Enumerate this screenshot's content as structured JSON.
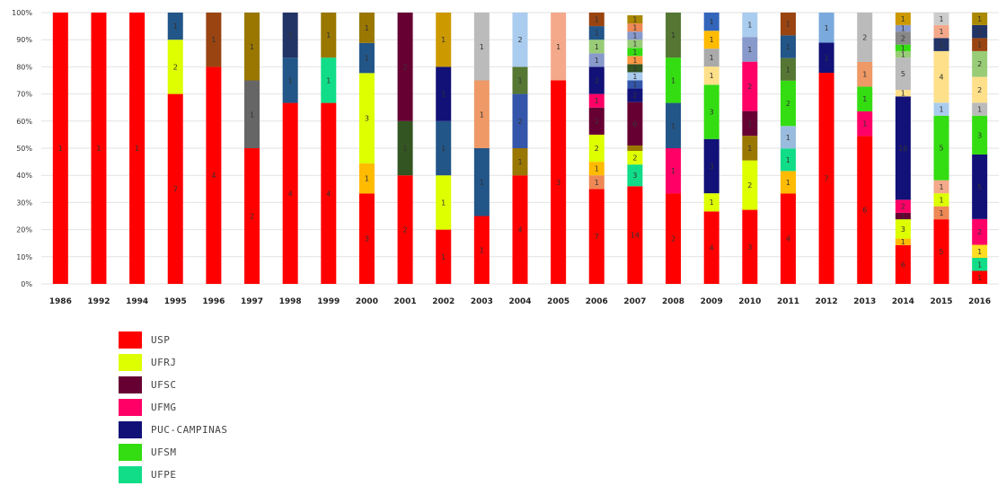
{
  "chart_data": {
    "type": "bar",
    "stacked": true,
    "normalized": true,
    "y_axis": {
      "min": 0,
      "max": 100,
      "unit": "%",
      "ticks": [
        "0%",
        "10%",
        "20%",
        "30%",
        "40%",
        "50%",
        "60%",
        "70%",
        "80%",
        "90%",
        "100%"
      ]
    },
    "grid": true,
    "legend_position": "bottom-left",
    "categories": [
      "1986",
      "1992",
      "1994",
      "1995",
      "1996",
      "1997",
      "1998",
      "1999",
      "2000",
      "2001",
      "2002",
      "2003",
      "2004",
      "2005",
      "2006",
      "2007",
      "2008",
      "2009",
      "2010",
      "2011",
      "2012",
      "2013",
      "2014",
      "2015",
      "2016"
    ],
    "legend": [
      {
        "name": "USP",
        "color": "#ff0000"
      },
      {
        "name": "UFRJ",
        "color": "#ddff00"
      },
      {
        "name": "UFSC",
        "color": "#660033"
      },
      {
        "name": "UFMG",
        "color": "#ff0066"
      },
      {
        "name": "PUC-CAMPINAS",
        "color": "#111177"
      },
      {
        "name": "UFSM",
        "color": "#33dd11"
      },
      {
        "name": "UFPE",
        "color": "#11dd88"
      }
    ],
    "bars": [
      {
        "segments": [
          {
            "value": 100,
            "color": "#ff0000",
            "label": "1"
          }
        ]
      },
      {
        "segments": [
          {
            "value": 100,
            "color": "#ff0000",
            "label": "1"
          }
        ]
      },
      {
        "segments": [
          {
            "value": 100,
            "color": "#ff0000",
            "label": "1"
          }
        ]
      },
      {
        "segments": [
          {
            "value": 70,
            "color": "#ff0000",
            "label": "7"
          },
          {
            "value": 20,
            "color": "#ddff00",
            "label": "2"
          },
          {
            "value": 10,
            "color": "#225588",
            "label": "1"
          }
        ]
      },
      {
        "segments": [
          {
            "value": 80,
            "color": "#ff0000",
            "label": "4"
          },
          {
            "value": 20,
            "color": "#994411",
            "label": "1"
          }
        ]
      },
      {
        "segments": [
          {
            "value": 50,
            "color": "#ff0000",
            "label": "2"
          },
          {
            "value": 25,
            "color": "#666666",
            "label": "1"
          },
          {
            "value": 25,
            "color": "#997700",
            "label": "1"
          }
        ]
      },
      {
        "segments": [
          {
            "value": 66.7,
            "color": "#ff0000",
            "label": "4"
          },
          {
            "value": 16.7,
            "color": "#225588",
            "label": "1"
          },
          {
            "value": 16.6,
            "color": "#223366",
            "label": "1"
          }
        ]
      },
      {
        "segments": [
          {
            "value": 66.7,
            "color": "#ff0000",
            "label": "4"
          },
          {
            "value": 16.7,
            "color": "#11dd88",
            "label": "1"
          },
          {
            "value": 16.6,
            "color": "#997700",
            "label": "1"
          }
        ]
      },
      {
        "segments": [
          {
            "value": 33.3,
            "color": "#ff0000",
            "label": "3"
          },
          {
            "value": 11.1,
            "color": "#ffbb00",
            "label": "1"
          },
          {
            "value": 33.3,
            "color": "#ddff00",
            "label": "3"
          },
          {
            "value": 11.1,
            "color": "#225588",
            "label": "1"
          },
          {
            "value": 11.2,
            "color": "#997700",
            "label": "1"
          }
        ]
      },
      {
        "segments": [
          {
            "value": 40,
            "color": "#ff0000",
            "label": "2"
          },
          {
            "value": 20,
            "color": "#335522",
            "label": "1"
          },
          {
            "value": 40,
            "color": "#660033",
            "label": "2"
          }
        ]
      },
      {
        "segments": [
          {
            "value": 20,
            "color": "#ff0000",
            "label": "1"
          },
          {
            "value": 20,
            "color": "#ddff00",
            "label": "1"
          },
          {
            "value": 20,
            "color": "#225588",
            "label": "1"
          },
          {
            "value": 20,
            "color": "#111177",
            "label": "1"
          },
          {
            "value": 20,
            "color": "#cc9900",
            "label": "1"
          }
        ]
      },
      {
        "segments": [
          {
            "value": 25,
            "color": "#ff0000",
            "label": "1"
          },
          {
            "value": 25,
            "color": "#225588",
            "label": "1"
          },
          {
            "value": 25,
            "color": "#ee9966",
            "label": "1"
          },
          {
            "value": 25,
            "color": "#bbbbbb",
            "label": "1"
          }
        ]
      },
      {
        "segments": [
          {
            "value": 40,
            "color": "#ff0000",
            "label": "4"
          },
          {
            "value": 10,
            "color": "#997700",
            "label": "1"
          },
          {
            "value": 20,
            "color": "#3355aa",
            "label": "2"
          },
          {
            "value": 10,
            "color": "#557733",
            "label": "1"
          },
          {
            "value": 20,
            "color": "#aaccee",
            "label": "2"
          }
        ]
      },
      {
        "segments": [
          {
            "value": 75,
            "color": "#ff0000",
            "label": "3"
          },
          {
            "value": 25,
            "color": "#f4a98a",
            "label": "1"
          }
        ]
      },
      {
        "segments": [
          {
            "value": 35,
            "color": "#ff0000",
            "label": "7"
          },
          {
            "value": 5,
            "color": "#ee8855",
            "label": "1"
          },
          {
            "value": 5,
            "color": "#ffbb00",
            "label": "1"
          },
          {
            "value": 10,
            "color": "#ddff00",
            "label": "2"
          },
          {
            "value": 10,
            "color": "#660033",
            "label": "2"
          },
          {
            "value": 5,
            "color": "#ff0066",
            "label": "1"
          },
          {
            "value": 10,
            "color": "#111177",
            "label": "2"
          },
          {
            "value": 5,
            "color": "#8899cc",
            "label": "1"
          },
          {
            "value": 5,
            "color": "#99cc77",
            "label": "1"
          },
          {
            "value": 5,
            "color": "#225588",
            "label": "1"
          },
          {
            "value": 5,
            "color": "#994411",
            "label": "1"
          }
        ]
      },
      {
        "segments": [
          {
            "value": 36,
            "color": "#ff0000",
            "label": "14"
          },
          {
            "value": 8,
            "color": "#11dd88",
            "label": "3"
          },
          {
            "value": 5,
            "color": "#ddff00",
            "label": "2"
          },
          {
            "value": 2,
            "color": "#997700",
            "label": "1"
          },
          {
            "value": 16,
            "color": "#660033",
            "label": "6"
          },
          {
            "value": 5,
            "color": "#111177",
            "label": "2"
          },
          {
            "value": 3,
            "color": "#3355aa",
            "label": "1"
          },
          {
            "value": 3,
            "color": "#aaccee",
            "label": "1"
          },
          {
            "value": 3,
            "color": "#335522",
            "label": "1"
          },
          {
            "value": 3,
            "color": "#ff9944",
            "label": "1"
          },
          {
            "value": 3,
            "color": "#33dd11",
            "label": "1"
          },
          {
            "value": 3,
            "color": "#99cc77",
            "label": "1"
          },
          {
            "value": 3,
            "color": "#8899cc",
            "label": "1"
          },
          {
            "value": 3,
            "color": "#ee8855",
            "label": "1"
          },
          {
            "value": 3,
            "color": "#aa8800",
            "label": "1"
          }
        ]
      },
      {
        "segments": [
          {
            "value": 33.3,
            "color": "#ff0000",
            "label": "2"
          },
          {
            "value": 16.7,
            "color": "#ff0066",
            "label": "1"
          },
          {
            "value": 16.7,
            "color": "#225588",
            "label": "1"
          },
          {
            "value": 16.7,
            "color": "#33dd11",
            "label": "1"
          },
          {
            "value": 16.6,
            "color": "#557733",
            "label": "1"
          }
        ]
      },
      {
        "segments": [
          {
            "value": 26.7,
            "color": "#ff0000",
            "label": "4"
          },
          {
            "value": 6.7,
            "color": "#ddff00",
            "label": "1"
          },
          {
            "value": 20,
            "color": "#111177",
            "label": "3"
          },
          {
            "value": 20,
            "color": "#33dd11",
            "label": "3"
          },
          {
            "value": 6.7,
            "color": "#ffe08a",
            "label": "1"
          },
          {
            "value": 6.6,
            "color": "#aaaaaa",
            "label": "1"
          },
          {
            "value": 6.6,
            "color": "#ffbb00",
            "label": "1"
          },
          {
            "value": 6.7,
            "color": "#3366bb",
            "label": "1"
          }
        ]
      },
      {
        "segments": [
          {
            "value": 27.3,
            "color": "#ff0000",
            "label": "3"
          },
          {
            "value": 18.2,
            "color": "#ddff00",
            "label": "2"
          },
          {
            "value": 9.1,
            "color": "#997700",
            "label": "1"
          },
          {
            "value": 9.1,
            "color": "#660033",
            "label": "1"
          },
          {
            "value": 18.2,
            "color": "#ff0066",
            "label": "2"
          },
          {
            "value": 9.1,
            "color": "#8899cc",
            "label": "1"
          },
          {
            "value": 9,
            "color": "#aaccee",
            "label": "1"
          }
        ]
      },
      {
        "segments": [
          {
            "value": 33.3,
            "color": "#ff0000",
            "label": "4"
          },
          {
            "value": 8.3,
            "color": "#ffbb00",
            "label": "1"
          },
          {
            "value": 8.3,
            "color": "#11dd88",
            "label": "1"
          },
          {
            "value": 8.3,
            "color": "#99bbdd",
            "label": "1"
          },
          {
            "value": 16.7,
            "color": "#33dd11",
            "label": "2"
          },
          {
            "value": 8.3,
            "color": "#557733",
            "label": "1"
          },
          {
            "value": 8.4,
            "color": "#225588",
            "label": "1"
          },
          {
            "value": 8.4,
            "color": "#994411",
            "label": "1"
          }
        ]
      },
      {
        "segments": [
          {
            "value": 77.8,
            "color": "#ff0000",
            "label": "7"
          },
          {
            "value": 11.1,
            "color": "#111177",
            "label": "1"
          },
          {
            "value": 11.1,
            "color": "#7aaadd",
            "label": "1"
          }
        ]
      },
      {
        "segments": [
          {
            "value": 54.5,
            "color": "#ff0000",
            "label": "6"
          },
          {
            "value": 9.1,
            "color": "#ff0066",
            "label": "1"
          },
          {
            "value": 9.1,
            "color": "#33dd11",
            "label": "1"
          },
          {
            "value": 9.1,
            "color": "#ee9966",
            "label": "1"
          },
          {
            "value": 18.2,
            "color": "#bbbbbb",
            "label": "2"
          }
        ]
      },
      {
        "segments": [
          {
            "value": 14.3,
            "color": "#ff0000",
            "label": "6"
          },
          {
            "value": 2.4,
            "color": "#ffbb00",
            "label": "1"
          },
          {
            "value": 7.1,
            "color": "#ddff00",
            "label": "3"
          },
          {
            "value": 2.4,
            "color": "#660033",
            "label": "1"
          },
          {
            "value": 4.8,
            "color": "#ff0066",
            "label": "2"
          },
          {
            "value": 38.1,
            "color": "#111177",
            "label": "16"
          },
          {
            "value": 2.4,
            "color": "#ffe08a",
            "label": "1"
          },
          {
            "value": 11.9,
            "color": "#bbbbbb",
            "label": "5"
          },
          {
            "value": 2.4,
            "color": "#99cc77",
            "label": "1"
          },
          {
            "value": 2.4,
            "color": "#33dd11",
            "label": "1"
          },
          {
            "value": 4.8,
            "color": "#888888",
            "label": "2"
          },
          {
            "value": 2.4,
            "color": "#8899cc",
            "label": "1"
          },
          {
            "value": 4.6,
            "color": "#cc9900",
            "label": "1"
          }
        ]
      },
      {
        "segments": [
          {
            "value": 23.8,
            "color": "#ff0000",
            "label": "5"
          },
          {
            "value": 4.8,
            "color": "#ee8855",
            "label": "1"
          },
          {
            "value": 4.8,
            "color": "#ddff00",
            "label": "1"
          },
          {
            "value": 4.8,
            "color": "#f4a98a",
            "label": "1"
          },
          {
            "value": 23.8,
            "color": "#33dd11",
            "label": "5"
          },
          {
            "value": 4.8,
            "color": "#aaccee",
            "label": "1"
          },
          {
            "value": 19,
            "color": "#ffe08a",
            "label": "4"
          },
          {
            "value": 4.8,
            "color": "#223366",
            "label": "1"
          },
          {
            "value": 4.8,
            "color": "#f4a98a",
            "label": "1"
          },
          {
            "value": 4.6,
            "color": "#cccccc",
            "label": "1"
          }
        ]
      },
      {
        "segments": [
          {
            "value": 4.8,
            "color": "#ff0000",
            "label": "1"
          },
          {
            "value": 4.8,
            "color": "#11dd88",
            "label": "1"
          },
          {
            "value": 4.8,
            "color": "#ffdd22",
            "label": "1"
          },
          {
            "value": 9.5,
            "color": "#ff0066",
            "label": "2"
          },
          {
            "value": 23.8,
            "color": "#111177",
            "label": "5"
          },
          {
            "value": 14.3,
            "color": "#33dd11",
            "label": "3"
          },
          {
            "value": 4.8,
            "color": "#bbbbbb",
            "label": "1"
          },
          {
            "value": 9.5,
            "color": "#ffe08a",
            "label": "2"
          },
          {
            "value": 9.5,
            "color": "#99cc77",
            "label": "2"
          },
          {
            "value": 4.8,
            "color": "#994411",
            "label": "1"
          },
          {
            "value": 4.8,
            "color": "#223366",
            "label": "1"
          },
          {
            "value": 4.6,
            "color": "#aa8800",
            "label": "1"
          }
        ]
      }
    ]
  }
}
